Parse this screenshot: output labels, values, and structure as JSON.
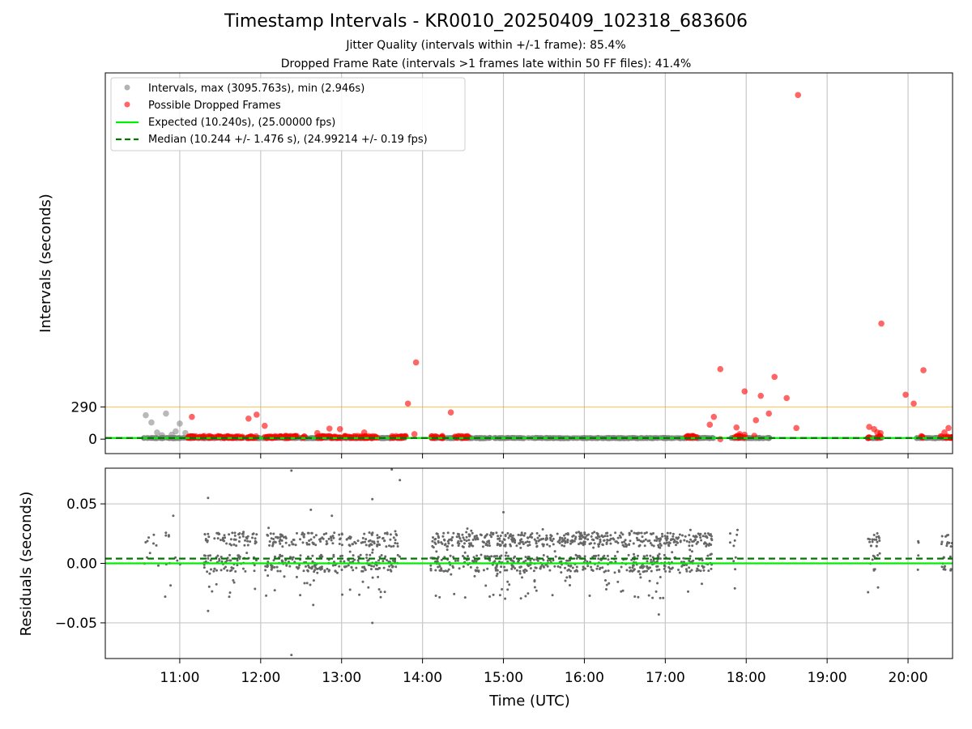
{
  "chart_data": {
    "title": "Timestamp Intervals - KR0010_20250409_102318_683606",
    "subtitle_lines": [
      "Jitter Quality (intervals within +/-1 frame): 85.4%",
      "Dropped Frame Rate (intervals >1 frames late within 50 FF files): 41.4%"
    ],
    "colors": {
      "intervals": "#808080",
      "dropped": "#ff0000",
      "expected": "#00ee00",
      "median": "#007700",
      "threshold": "#ffa500",
      "residuals": "#666666",
      "grid": "#c8c8c8"
    },
    "x_axis": {
      "label": "Time (UTC)",
      "range_hours": [
        10.08,
        20.55
      ],
      "ticks": [
        {
          "hour": 11,
          "label": "11:00"
        },
        {
          "hour": 12,
          "label": "12:00"
        },
        {
          "hour": 13,
          "label": "13:00"
        },
        {
          "hour": 14,
          "label": "14:00"
        },
        {
          "hour": 15,
          "label": "15:00"
        },
        {
          "hour": 16,
          "label": "16:00"
        },
        {
          "hour": 17,
          "label": "17:00"
        },
        {
          "hour": 18,
          "label": "18:00"
        },
        {
          "hour": 19,
          "label": "19:00"
        },
        {
          "hour": 20,
          "label": "20:00"
        }
      ]
    },
    "top_panel": {
      "type": "scatter",
      "ylabel": "Intervals (seconds)",
      "ylim": [
        -130,
        3295
      ],
      "yticks": [
        {
          "value": 0,
          "label": "0"
        },
        {
          "value": 290,
          "label": "290"
        }
      ],
      "threshold_line": 290,
      "expected_value": 10.24,
      "median_value": 10.244,
      "legend_position": "top-left",
      "legend": [
        {
          "label": "Intervals, max (3095.763s), min (2.946s)",
          "kind": "gray-dot"
        },
        {
          "label": "Possible Dropped Frames",
          "kind": "red-dot"
        },
        {
          "label": "Expected (10.240s), (25.00000 fps)",
          "kind": "green-line"
        },
        {
          "label": "Median (10.244 +/- 1.476 s), (24.99214 +/- 0.19 fps)",
          "kind": "green-dashed"
        }
      ],
      "dropped_frames": [
        {
          "x": 11.15,
          "y": 200
        },
        {
          "x": 11.85,
          "y": 185
        },
        {
          "x": 11.95,
          "y": 220
        },
        {
          "x": 12.05,
          "y": 120
        },
        {
          "x": 12.7,
          "y": 55
        },
        {
          "x": 12.85,
          "y": 95
        },
        {
          "x": 12.98,
          "y": 90
        },
        {
          "x": 13.28,
          "y": 60
        },
        {
          "x": 13.82,
          "y": 320
        },
        {
          "x": 13.92,
          "y": 690
        },
        {
          "x": 13.9,
          "y": 45
        },
        {
          "x": 14.35,
          "y": 240
        },
        {
          "x": 17.55,
          "y": 130
        },
        {
          "x": 17.6,
          "y": 200
        },
        {
          "x": 17.68,
          "y": 630
        },
        {
          "x": 17.68,
          "y": 0
        },
        {
          "x": 17.88,
          "y": 105
        },
        {
          "x": 17.92,
          "y": 45
        },
        {
          "x": 17.98,
          "y": 430
        },
        {
          "x": 17.98,
          "y": 40
        },
        {
          "x": 18.1,
          "y": 30
        },
        {
          "x": 18.12,
          "y": 170
        },
        {
          "x": 18.18,
          "y": 390
        },
        {
          "x": 18.28,
          "y": 230
        },
        {
          "x": 18.35,
          "y": 560
        },
        {
          "x": 18.5,
          "y": 370
        },
        {
          "x": 18.62,
          "y": 100
        },
        {
          "x": 18.64,
          "y": 3095.763
        },
        {
          "x": 19.52,
          "y": 110
        },
        {
          "x": 19.58,
          "y": 90
        },
        {
          "x": 19.62,
          "y": 60
        },
        {
          "x": 19.66,
          "y": 55
        },
        {
          "x": 19.67,
          "y": 1040
        },
        {
          "x": 19.97,
          "y": 400
        },
        {
          "x": 20.07,
          "y": 320
        },
        {
          "x": 20.19,
          "y": 620
        },
        {
          "x": 20.45,
          "y": 60
        },
        {
          "x": 20.5,
          "y": 100
        }
      ],
      "interval_outliers": [
        {
          "x": 10.58,
          "y": 215
        },
        {
          "x": 10.65,
          "y": 150
        },
        {
          "x": 10.72,
          "y": 60
        },
        {
          "x": 10.83,
          "y": 230
        },
        {
          "x": 10.9,
          "y": 40
        },
        {
          "x": 11.0,
          "y": 140
        },
        {
          "x": 11.07,
          "y": 55
        },
        {
          "x": 10.78,
          "y": 35
        },
        {
          "x": 10.95,
          "y": 70
        }
      ],
      "dropped_clusters": [
        {
          "x0": 11.1,
          "x1": 11.55
        },
        {
          "x0": 11.55,
          "x1": 11.95
        },
        {
          "x0": 12.05,
          "x1": 12.55
        },
        {
          "x0": 12.7,
          "x1": 13.45
        },
        {
          "x0": 13.6,
          "x1": 13.8
        },
        {
          "x0": 14.1,
          "x1": 14.25
        },
        {
          "x0": 14.4,
          "x1": 14.58
        },
        {
          "x0": 17.25,
          "x1": 17.42
        },
        {
          "x0": 17.85,
          "x1": 17.98
        },
        {
          "x0": 19.48,
          "x1": 19.52
        },
        {
          "x0": 19.6,
          "x1": 19.66
        },
        {
          "x0": 20.15,
          "x1": 20.18
        },
        {
          "x0": 20.4,
          "x1": 20.55
        }
      ],
      "interval_bands": [
        {
          "x0": 10.55,
          "x1": 11.1
        },
        {
          "x0": 11.1,
          "x1": 13.8
        },
        {
          "x0": 14.1,
          "x1": 17.6
        },
        {
          "x0": 17.8,
          "x1": 18.3
        },
        {
          "x0": 19.5,
          "x1": 19.7
        },
        {
          "x0": 20.1,
          "x1": 20.55
        }
      ]
    },
    "bottom_panel": {
      "type": "scatter",
      "ylabel": "Residuals (seconds)",
      "ylim": [
        -0.08,
        0.08
      ],
      "yticks": [
        {
          "value": 0.05,
          "label": "0.05"
        },
        {
          "value": 0.0,
          "label": "0.00"
        },
        {
          "value": -0.05,
          "label": "−0.05"
        }
      ],
      "expected_line": 0.0,
      "median_line": 0.004,
      "bands": [
        {
          "x0": 10.55,
          "x1": 11.05,
          "n": 20
        },
        {
          "x0": 11.3,
          "x1": 11.95,
          "n": 130
        },
        {
          "x0": 12.05,
          "x1": 12.7,
          "n": 140
        },
        {
          "x0": 12.7,
          "x1": 13.4,
          "n": 140
        },
        {
          "x0": 13.4,
          "x1": 13.72,
          "n": 70
        },
        {
          "x0": 14.1,
          "x1": 14.6,
          "n": 120
        },
        {
          "x0": 14.6,
          "x1": 15.3,
          "n": 190
        },
        {
          "x0": 15.3,
          "x1": 16.0,
          "n": 190
        },
        {
          "x0": 16.0,
          "x1": 16.8,
          "n": 200
        },
        {
          "x0": 16.8,
          "x1": 17.58,
          "n": 200
        },
        {
          "x0": 17.8,
          "x1": 17.9,
          "n": 10
        },
        {
          "x0": 19.5,
          "x1": 19.66,
          "n": 30
        },
        {
          "x0": 20.12,
          "x1": 20.15,
          "n": 4
        },
        {
          "x0": 20.4,
          "x1": 20.55,
          "n": 25
        }
      ],
      "outliers": [
        {
          "x": 11.35,
          "y": 0.055
        },
        {
          "x": 11.35,
          "y": -0.04
        },
        {
          "x": 12.38,
          "y": 0.078
        },
        {
          "x": 12.38,
          "y": -0.077
        },
        {
          "x": 12.62,
          "y": 0.045
        },
        {
          "x": 12.65,
          "y": -0.035
        },
        {
          "x": 13.38,
          "y": 0.054
        },
        {
          "x": 13.38,
          "y": -0.05
        },
        {
          "x": 13.62,
          "y": 0.079
        },
        {
          "x": 13.72,
          "y": 0.07
        },
        {
          "x": 16.92,
          "y": -0.043
        },
        {
          "x": 10.92,
          "y": 0.04
        },
        {
          "x": 10.82,
          "y": -0.028
        },
        {
          "x": 12.88,
          "y": 0.04
        },
        {
          "x": 15.0,
          "y": 0.043
        }
      ]
    }
  }
}
